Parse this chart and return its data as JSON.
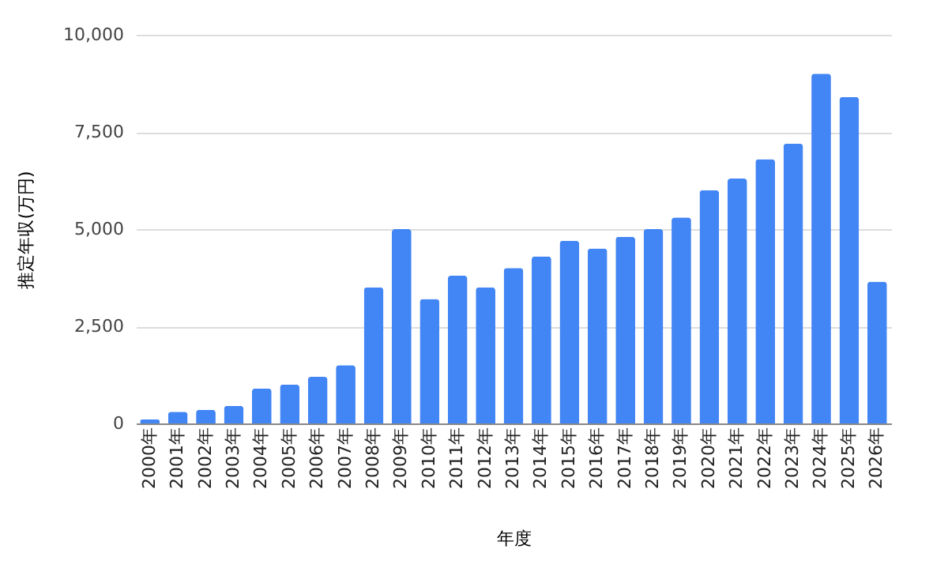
{
  "chart_data": {
    "type": "bar",
    "xlabel": "年度",
    "ylabel": "推定年収(万円)",
    "categories": [
      "2000年",
      "2001年",
      "2002年",
      "2003年",
      "2004年",
      "2005年",
      "2006年",
      "2007年",
      "2008年",
      "2009年",
      "2010年",
      "2011年",
      "2012年",
      "2013年",
      "2014年",
      "2015年",
      "2016年",
      "2017年",
      "2018年",
      "2019年",
      "2020年",
      "2021年",
      "2022年",
      "2023年",
      "2024年",
      "2025年",
      "2026年"
    ],
    "values": [
      100,
      300,
      350,
      450,
      900,
      1000,
      1200,
      1500,
      3500,
      5000,
      3200,
      3800,
      3500,
      4000,
      4300,
      4700,
      4500,
      4800,
      5000,
      5300,
      6000,
      6300,
      6800,
      7200,
      9000,
      8400,
      3650
    ],
    "color": "#4285f4",
    "ylim": [
      0,
      10000
    ],
    "yticks": [
      0,
      {
        "value": 2500,
        "label": "2,500"
      },
      {
        "value": 5000,
        "label": "5,000"
      },
      {
        "value": 7500,
        "label": "7,500"
      },
      {
        "value": 10000,
        "label": "10,000"
      }
    ],
    "grid": "y"
  }
}
